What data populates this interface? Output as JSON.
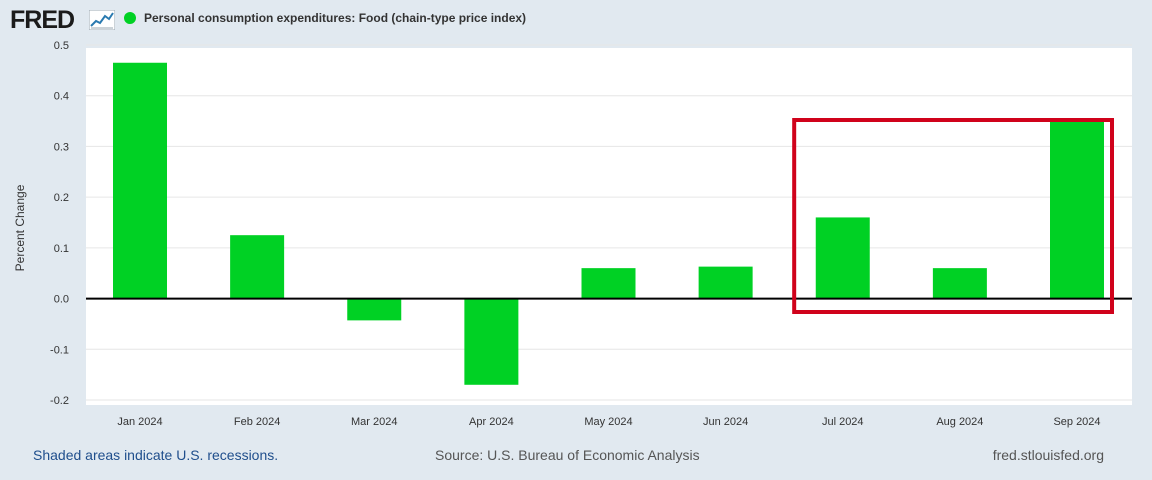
{
  "header": {
    "logo_text": "FRED",
    "logo_icon": "line-chart-icon",
    "series_label": "Personal consumption expenditures: Food (chain-type price index)",
    "series_color": "#00d124"
  },
  "chart_data": {
    "type": "bar",
    "title": "Personal consumption expenditures: Food (chain-type price index)",
    "xlabel": "",
    "ylabel": "Percent Change",
    "categories": [
      "Jan 2024",
      "Feb 2024",
      "Mar 2024",
      "Apr 2024",
      "May 2024",
      "Jun 2024",
      "Jul 2024",
      "Aug 2024",
      "Sep 2024"
    ],
    "values": [
      0.465,
      0.125,
      -0.043,
      -0.17,
      0.06,
      0.063,
      0.16,
      0.06,
      0.35
    ],
    "ylim": [
      -0.2,
      0.5
    ],
    "yticks": [
      "0.5",
      "0.4",
      "0.3",
      "0.2",
      "0.1",
      "0.0",
      "-0.1",
      "-0.2"
    ],
    "ytick_values": [
      0.5,
      0.4,
      0.3,
      0.2,
      0.1,
      0.0,
      -0.1,
      -0.2
    ],
    "grid": true,
    "annotation": {
      "type": "highlight-box",
      "categories": [
        "Jul 2024",
        "Aug 2024",
        "Sep 2024"
      ],
      "color": "#d0021b"
    }
  },
  "footer": {
    "recession_note": "Shaded areas indicate U.S. recessions.",
    "source": "Source: U.S. Bureau of Economic Analysis",
    "site": "fred.stlouisfed.org"
  },
  "colors": {
    "background": "#e1e9f0",
    "plot_background": "#ffffff",
    "bar": "#00d124",
    "highlight": "#d0021b"
  }
}
